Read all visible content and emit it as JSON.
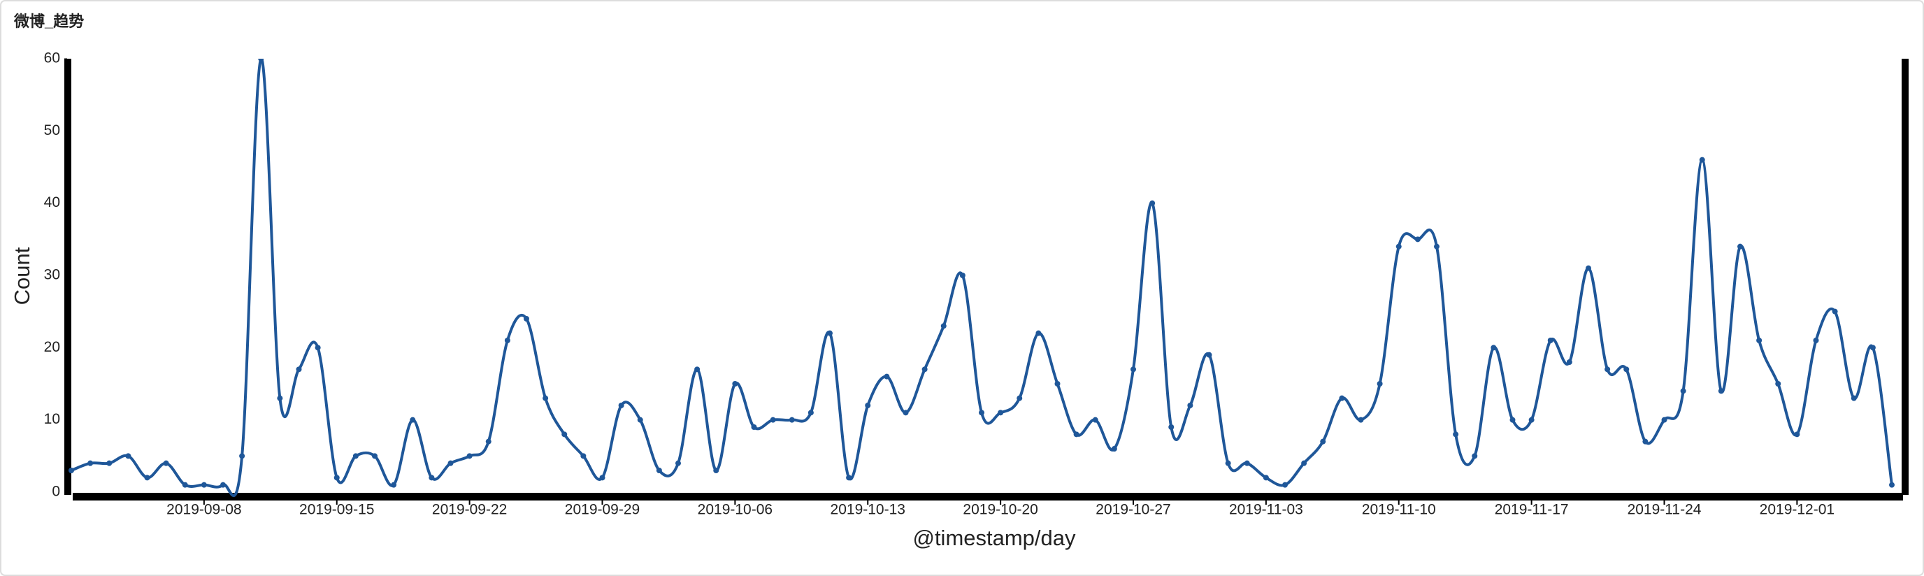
{
  "chart_data": {
    "type": "line",
    "title": "微博_趋势",
    "xlabel": "@timestamp/day",
    "ylabel": "Count",
    "x": [
      "2019-09-01",
      "2019-09-02",
      "2019-09-03",
      "2019-09-04",
      "2019-09-05",
      "2019-09-06",
      "2019-09-07",
      "2019-09-08",
      "2019-09-09",
      "2019-09-10",
      "2019-09-11",
      "2019-09-12",
      "2019-09-13",
      "2019-09-14",
      "2019-09-15",
      "2019-09-16",
      "2019-09-17",
      "2019-09-18",
      "2019-09-19",
      "2019-09-20",
      "2019-09-21",
      "2019-09-22",
      "2019-09-23",
      "2019-09-24",
      "2019-09-25",
      "2019-09-26",
      "2019-09-27",
      "2019-09-28",
      "2019-09-29",
      "2019-09-30",
      "2019-10-01",
      "2019-10-02",
      "2019-10-03",
      "2019-10-04",
      "2019-10-05",
      "2019-10-06",
      "2019-10-07",
      "2019-10-08",
      "2019-10-09",
      "2019-10-10",
      "2019-10-11",
      "2019-10-12",
      "2019-10-13",
      "2019-10-14",
      "2019-10-15",
      "2019-10-16",
      "2019-10-17",
      "2019-10-18",
      "2019-10-19",
      "2019-10-20",
      "2019-10-21",
      "2019-10-22",
      "2019-10-23",
      "2019-10-24",
      "2019-10-25",
      "2019-10-26",
      "2019-10-27",
      "2019-10-28",
      "2019-10-29",
      "2019-10-30",
      "2019-10-31",
      "2019-11-01",
      "2019-11-02",
      "2019-11-03",
      "2019-11-04",
      "2019-11-05",
      "2019-11-06",
      "2019-11-07",
      "2019-11-08",
      "2019-11-09",
      "2019-11-10",
      "2019-11-11",
      "2019-11-12",
      "2019-11-13",
      "2019-11-14",
      "2019-11-15",
      "2019-11-16",
      "2019-11-17",
      "2019-11-18",
      "2019-11-19",
      "2019-11-20",
      "2019-11-21",
      "2019-11-22",
      "2019-11-23",
      "2019-11-24",
      "2019-11-25",
      "2019-11-26",
      "2019-11-27",
      "2019-11-28",
      "2019-11-29",
      "2019-11-30",
      "2019-12-01",
      "2019-12-02",
      "2019-12-03",
      "2019-12-04",
      "2019-12-05",
      "2019-12-06"
    ],
    "series": [
      {
        "name": "Count",
        "color": "#1f5799",
        "values": [
          3,
          4,
          4,
          5,
          2,
          4,
          1,
          1,
          1,
          5,
          60,
          13,
          17,
          20,
          2,
          5,
          5,
          1,
          10,
          2,
          4,
          5,
          7,
          21,
          24,
          13,
          8,
          5,
          2,
          12,
          10,
          3,
          4,
          17,
          3,
          15,
          9,
          10,
          10,
          11,
          22,
          2,
          12,
          16,
          11,
          17,
          23,
          30,
          11,
          11,
          13,
          22,
          15,
          8,
          10,
          6,
          17,
          40,
          9,
          12,
          19,
          4,
          4,
          2,
          1,
          4,
          7,
          13,
          10,
          15,
          34,
          35,
          34,
          8,
          5,
          20,
          10,
          10,
          21,
          18,
          31,
          17,
          17,
          7,
          10,
          14,
          46,
          14,
          34,
          21,
          15,
          8,
          21,
          25,
          13,
          20,
          1
        ]
      }
    ],
    "xlim": [
      "2019-09-01",
      "2019-12-06"
    ],
    "xticks": [
      "2019-09-08",
      "2019-09-15",
      "2019-09-22",
      "2019-09-29",
      "2019-10-06",
      "2019-10-13",
      "2019-10-20",
      "2019-10-27",
      "2019-11-03",
      "2019-11-10",
      "2019-11-17",
      "2019-11-24",
      "2019-12-01"
    ],
    "ylim": [
      0,
      60
    ],
    "yticks": [
      0,
      10,
      20,
      30,
      40,
      50,
      60
    ],
    "grid": false
  }
}
